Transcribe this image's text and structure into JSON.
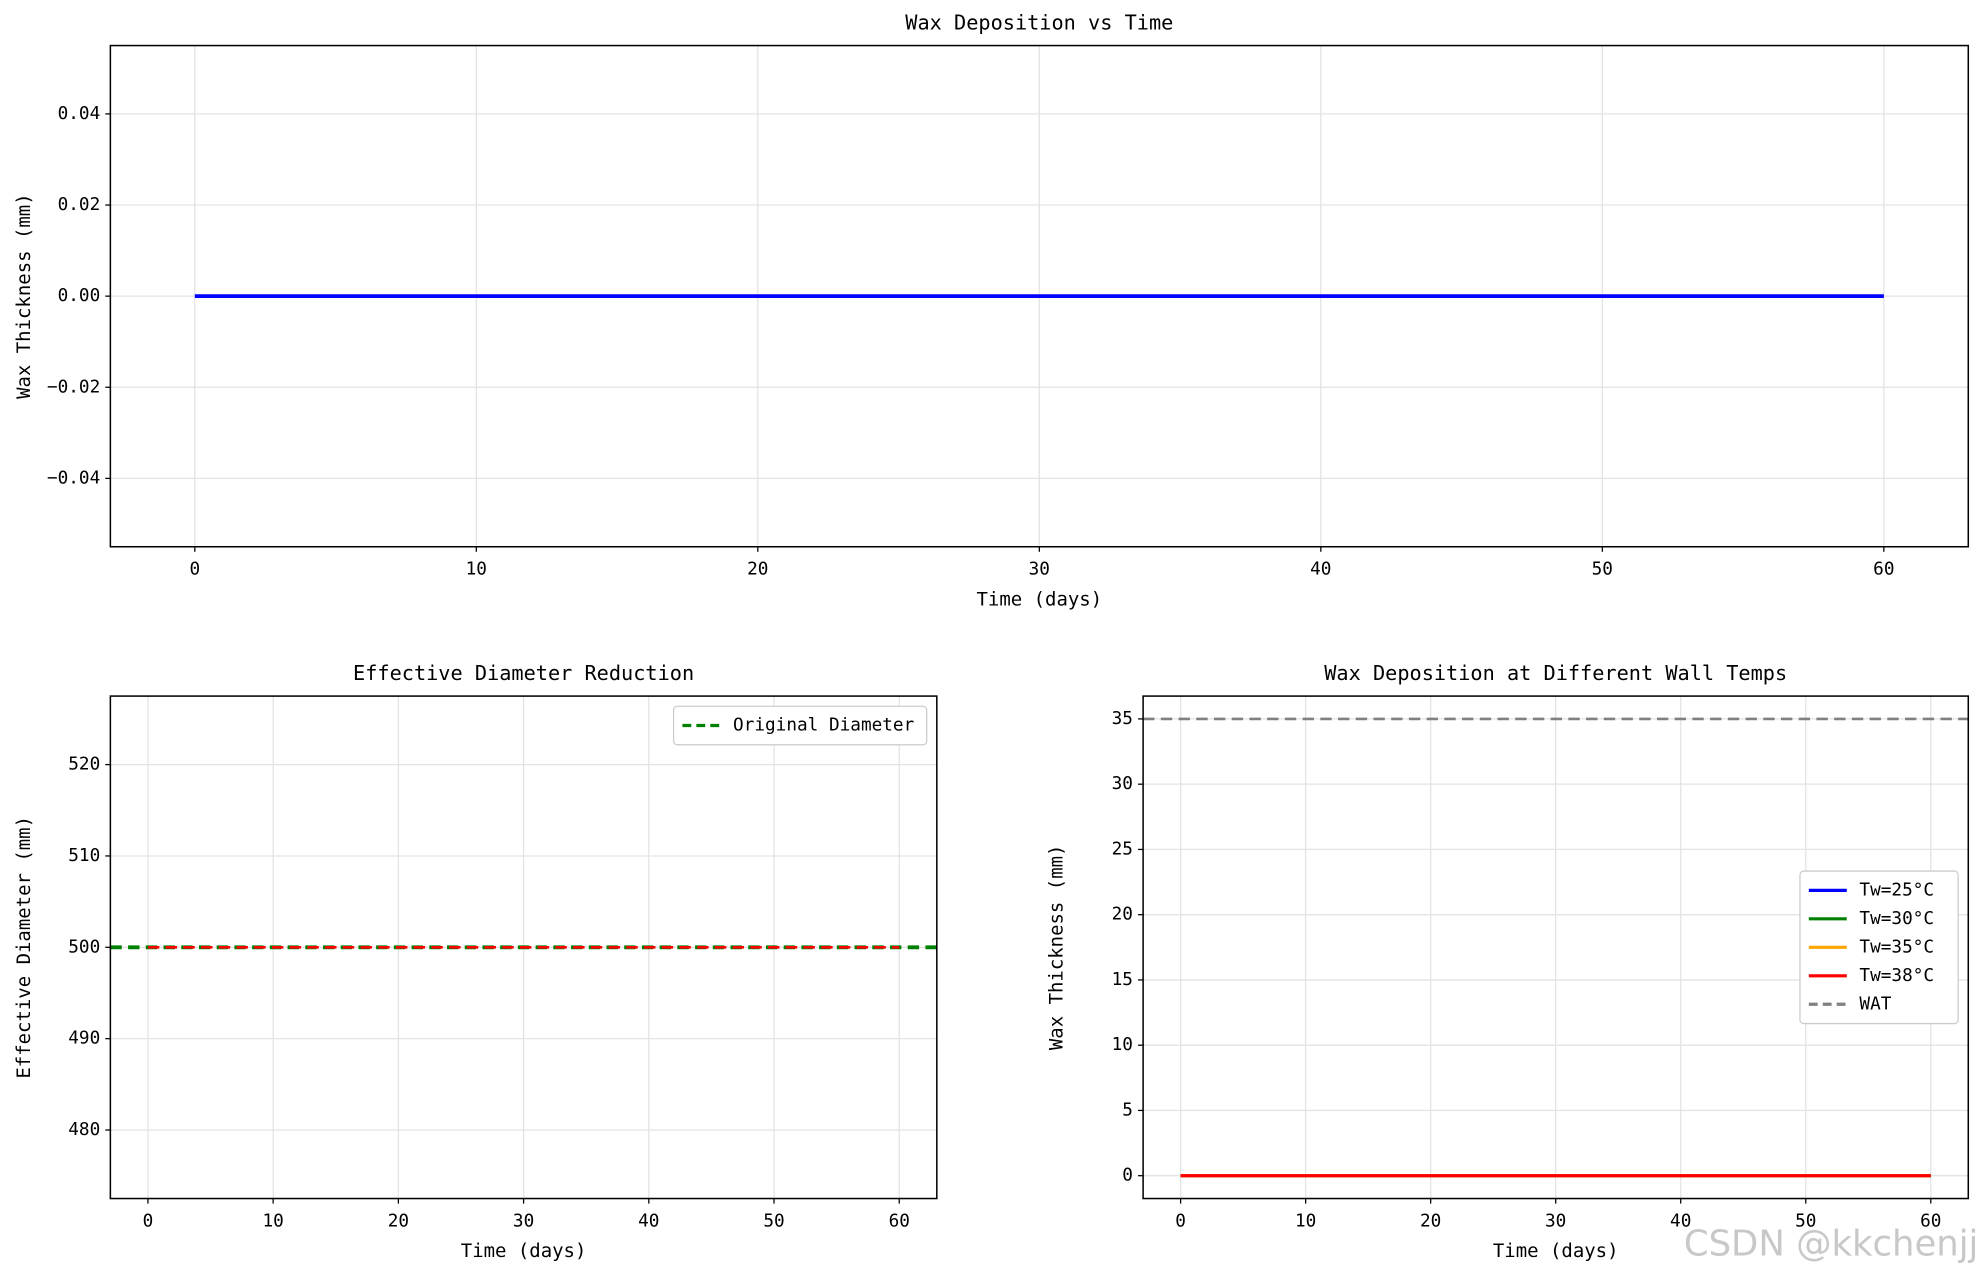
{
  "chart_data": [
    {
      "type": "line",
      "title": "Wax Deposition vs Time",
      "xlabel": "Time (days)",
      "ylabel": "Wax Thickness (mm)",
      "x": [
        0,
        10,
        20,
        30,
        40,
        50,
        60
      ],
      "values": [
        0,
        0,
        0,
        0,
        0,
        0,
        0
      ],
      "color": "#0000ff",
      "linestyle": "solid",
      "xlim": [
        -3,
        63
      ],
      "xticks": [
        0,
        10,
        20,
        30,
        40,
        50,
        60
      ],
      "ylim": [
        -0.055,
        0.055
      ],
      "yticks": [
        {
          "value": -0.04,
          "label": "−0.04"
        },
        {
          "value": -0.02,
          "label": "−0.02"
        },
        {
          "value": 0,
          "label": "0.00"
        },
        0.02,
        0.04
      ],
      "grid": true
    },
    {
      "type": "line",
      "title": "Effective Diameter Reduction",
      "xlabel": "Time (days)",
      "ylabel": "Effective Diameter (mm)",
      "x": [
        0,
        10,
        20,
        30,
        40,
        50,
        60
      ],
      "values": [
        500,
        500,
        500,
        500,
        500,
        500,
        500
      ],
      "color": "#ff0000",
      "linestyle": "dashed",
      "hlines": [
        {
          "name": "Original Diameter",
          "value": 500,
          "color": "#008000",
          "linestyle": "dashed"
        }
      ],
      "xlim": [
        -3,
        63
      ],
      "xticks": [
        0,
        10,
        20,
        30,
        40,
        50,
        60
      ],
      "ylim": [
        472.5,
        527.5
      ],
      "yticks": [
        480,
        490,
        500,
        510,
        520
      ],
      "grid": true,
      "legend": "upper right"
    },
    {
      "type": "line",
      "title": "Wax Deposition at Different Wall Temps",
      "xlabel": "Time (days)",
      "ylabel": "Wax Thickness (mm)",
      "x": [
        0,
        10,
        20,
        30,
        40,
        50,
        60
      ],
      "series": [
        {
          "name": "Tw=25°C",
          "color": "#0000ff",
          "values": [
            0,
            0,
            0,
            0,
            0,
            0,
            0
          ]
        },
        {
          "name": "Tw=30°C",
          "color": "#008000",
          "values": [
            0,
            0,
            0,
            0,
            0,
            0,
            0
          ]
        },
        {
          "name": "Tw=35°C",
          "color": "#ffa500",
          "values": [
            0,
            0,
            0,
            0,
            0,
            0,
            0
          ]
        },
        {
          "name": "Tw=38°C",
          "color": "#ff0000",
          "values": [
            0,
            0,
            0,
            0,
            0,
            0,
            0
          ]
        }
      ],
      "hlines": [
        {
          "name": "WAT",
          "value": 35,
          "color": "#808080",
          "linestyle": "dashed"
        }
      ],
      "xlim": [
        -3,
        63
      ],
      "xticks": [
        0,
        10,
        20,
        30,
        40,
        50,
        60
      ],
      "ylim": [
        -1.75,
        36.75
      ],
      "yticks": [
        0,
        5,
        10,
        15,
        20,
        25,
        30,
        35
      ],
      "grid": true,
      "legend": "center right"
    }
  ],
  "watermark": "CSDN @kkchenjj"
}
